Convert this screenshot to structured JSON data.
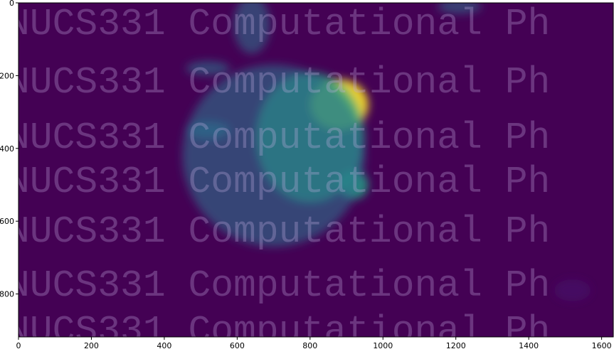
{
  "chart_data": {
    "type": "heatmap",
    "title": "",
    "xlabel": "",
    "ylabel": "",
    "colormap": "viridis",
    "xlim": [
      0,
      1632
    ],
    "ylim": [
      918,
      0
    ],
    "x_ticks": [
      0,
      200,
      400,
      600,
      800,
      1000,
      1200,
      1400,
      1600
    ],
    "x_tick_labels": [
      "0",
      "200",
      "400",
      "600",
      "800",
      "1000",
      "1200",
      "1400",
      "1600"
    ],
    "y_ticks": [
      0,
      200,
      400,
      600,
      800
    ],
    "y_tick_labels": [
      "0",
      "200",
      "400",
      "600",
      "800"
    ],
    "grid": false,
    "watermark": "NUCS331 Computational Ph",
    "colors": {
      "background": "#440154",
      "low": "#481c6e",
      "mid": "#2c728e",
      "high": "#22a884",
      "peak": "#fde725"
    },
    "hot_regions": [
      {
        "x": 880,
        "y": 280,
        "rx": 80,
        "ry": 70,
        "intensity": 1.0
      },
      {
        "x": 920,
        "y": 500,
        "rx": 40,
        "ry": 40,
        "intensity": 0.85
      },
      {
        "x": 800,
        "y": 370,
        "rx": 150,
        "ry": 180,
        "intensity": 0.65
      },
      {
        "x": 700,
        "y": 420,
        "rx": 250,
        "ry": 250,
        "intensity": 0.45
      },
      {
        "x": 520,
        "y": 350,
        "rx": 60,
        "ry": 25,
        "intensity": 0.5
      },
      {
        "x": 520,
        "y": 180,
        "rx": 60,
        "ry": 20,
        "intensity": 0.45
      },
      {
        "x": 640,
        "y": 60,
        "rx": 50,
        "ry": 80,
        "intensity": 0.4
      },
      {
        "x": 1210,
        "y": 10,
        "rx": 60,
        "ry": 20,
        "intensity": 0.4
      },
      {
        "x": 1520,
        "y": 790,
        "rx": 50,
        "ry": 30,
        "intensity": 0.3
      }
    ]
  }
}
